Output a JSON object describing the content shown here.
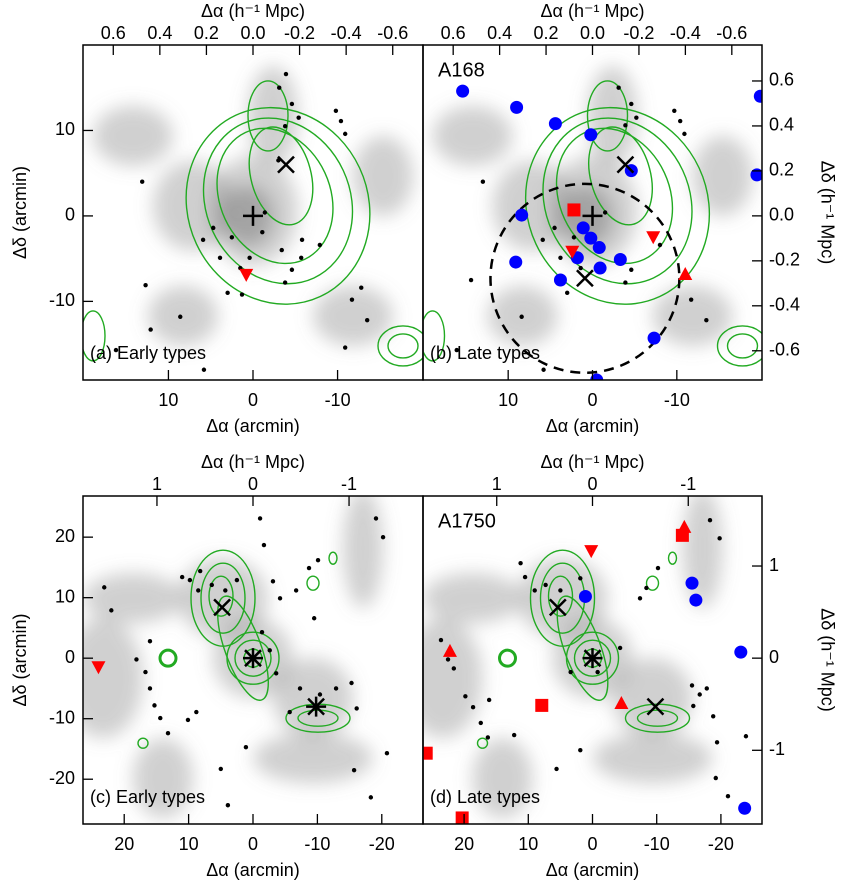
{
  "chart_data": [
    {
      "type": "scatter",
      "annotation": "(a) Early types",
      "xlabel": "Δα (arcmin)",
      "ylabel": "Δδ (arcmin)",
      "x2label": "Δα (h⁻¹ Mpc)",
      "xlim": [
        20.1,
        -20.1
      ],
      "ylim": [
        -19.2,
        20
      ],
      "xticks": [
        10,
        0,
        -10
      ],
      "yticks": [
        10,
        0,
        -10
      ],
      "x2lim": [
        0.73,
        -0.73
      ],
      "x2ticks": [
        0.6,
        0.4,
        0.2,
        {
          "value": 0,
          "label": "0.0"
        },
        -0.2,
        -0.4,
        -0.6
      ],
      "series": [
        {
          "marker": "dot",
          "color": "#000000",
          "x": [
            13.1,
            12.7,
            16.2,
            8.6,
            5.9,
            4.7,
            3.9,
            2.5,
            1.5,
            0.4,
            -1.4,
            -1.1,
            -3.4,
            -5.8,
            -5.7,
            -3.8,
            -5.4,
            -9.8,
            -10.4,
            -10.9,
            -4.6,
            -3.1,
            -3.9,
            -3.8,
            -11.7,
            -12.8,
            -13.5,
            -10.9,
            3.0,
            1.3,
            -4.6,
            -7.9,
            -3.0,
            5.8,
            12.1
          ],
          "y": [
            4.0,
            -8.1,
            -15.7,
            -11.8,
            -2.8,
            -1.4,
            -4.9,
            -2.5,
            -6.1,
            -4.9,
            0.4,
            -1.9,
            -4.0,
            -2.8,
            -4.9,
            10.5,
            11.5,
            12.3,
            11.1,
            9.6,
            13.1,
            15.0,
            16.6,
            -7.8,
            -9.8,
            -8.4,
            -12.2,
            -15.4,
            -9.0,
            -9.2,
            -6.3,
            -3.4,
            6.5,
            -18.0,
            -13.3
          ]
        },
        {
          "marker": "tri_down",
          "color": "#ff0000",
          "x": [
            0.8
          ],
          "y": [
            -6.9
          ]
        },
        {
          "marker": "cross",
          "color": "#000000",
          "x": [
            -3.9
          ],
          "y": [
            6.0
          ]
        },
        {
          "marker": "plus",
          "color": "#000000",
          "x": [
            0
          ],
          "y": [
            0
          ]
        }
      ]
    },
    {
      "type": "scatter",
      "annotation": "(b) Late types",
      "label": "A168",
      "xlabel": "Δα (arcmin)",
      "x2label": "Δα (h⁻¹ Mpc)",
      "y2label": "Δδ (h⁻¹ Mpc)",
      "xlim": [
        20.1,
        -20.1
      ],
      "ylim": [
        -19.2,
        20
      ],
      "xticks": [
        10,
        0,
        -10
      ],
      "x2lim": [
        0.73,
        -0.73
      ],
      "x2ticks": [
        0.6,
        0.4,
        0.2,
        {
          "value": 0,
          "label": "0.0"
        },
        -0.2,
        -0.4,
        -0.6
      ],
      "y2lim": [
        -0.73,
        0.76
      ],
      "y2ticks": [
        0.6,
        0.4,
        0.2,
        {
          "value": 0,
          "label": "0.0"
        },
        -0.2,
        -0.4,
        -0.6
      ],
      "circle": {
        "x": 0.9,
        "y": -7.3,
        "r": 11.2
      },
      "series": [
        {
          "marker": "dot",
          "color": "#000000",
          "x": [
            13.0,
            14.4,
            16.1,
            8.4,
            5.9,
            4.5,
            3.8,
            2.2,
            1.4,
            -1.5,
            -3.9,
            -5.2,
            -9.7,
            -10.4,
            -10.9,
            -4.6,
            -3.1,
            -3.9,
            -11.7,
            -13.5,
            3.0,
            -4.6,
            -8.0,
            5.8
          ],
          "y": [
            4.0,
            -7.5,
            -15.7,
            -11.8,
            -2.8,
            -1.4,
            -4.9,
            -2.5,
            -6.1,
            0.4,
            10.6,
            11.5,
            12.3,
            11.1,
            9.6,
            13.1,
            15.0,
            -7.8,
            -9.8,
            -12.2,
            -9.0,
            -6.3,
            -3.4,
            -18.0
          ]
        },
        {
          "marker": "circle",
          "color": "#0000ff",
          "x": [
            15.4,
            9.0,
            4.4,
            0.2,
            -4.6,
            -19.9,
            -19.5,
            8.4,
            1.1,
            0.2,
            -0.8,
            1.8,
            -0.9,
            -3.3,
            9.1,
            3.8,
            -7.3,
            -0.5
          ],
          "y": [
            14.6,
            12.7,
            10.8,
            9.5,
            5.3,
            14.0,
            4.8,
            0.1,
            -1.4,
            -2.6,
            -3.7,
            -4.9,
            -6.1,
            -5.1,
            -5.4,
            -7.5,
            -14.3,
            -19.2
          ]
        },
        {
          "marker": "square",
          "color": "#ff0000",
          "x": [
            2.2
          ],
          "y": [
            0.7
          ]
        },
        {
          "marker": "tri_down",
          "color": "#ff0000",
          "x": [
            2.4,
            -7.2
          ],
          "y": [
            -4.2,
            -2.5
          ]
        },
        {
          "marker": "tri_up",
          "color": "#ff0000",
          "x": [
            -11.0
          ],
          "y": [
            -6.8
          ]
        },
        {
          "marker": "cross",
          "color": "#000000",
          "x": [
            -3.9,
            0.9
          ],
          "y": [
            6.0,
            -7.3
          ]
        },
        {
          "marker": "plus",
          "color": "#000000",
          "x": [
            0
          ],
          "y": [
            0
          ]
        }
      ]
    },
    {
      "type": "scatter",
      "annotation": "(c) Early types",
      "xlabel": "Δα (arcmin)",
      "ylabel": "Δδ (arcmin)",
      "x2label": "Δα (h⁻¹ Mpc)",
      "xlim": [
        26.4,
        -26.4
      ],
      "ylim": [
        -27.4,
        26.8
      ],
      "xticks": [
        20,
        10,
        0,
        -10,
        -20
      ],
      "yticks": [
        20,
        10,
        0,
        -10,
        -20
      ],
      "x2lim": [
        1.77,
        -1.77
      ],
      "x2ticks": [
        1,
        0,
        -1
      ],
      "series": [
        {
          "marker": "dot",
          "color": "#000000",
          "x": [
            23.1,
            22.0,
            18.1,
            16.7,
            16.0,
            15.3,
            14.4,
            13.2,
            10.1,
            8.8,
            11.0,
            9.8,
            8.5,
            8.2,
            6.4,
            4.3,
            2.5,
            -1.1,
            -1.7,
            -3.1,
            -4.2,
            -6.7,
            -8.7,
            -10.1,
            -9.5,
            -1.4,
            -2.6,
            -3.6,
            -7.3,
            -12.9,
            -15.3,
            -16.1,
            -10.4,
            -5.7,
            -15.7,
            -18.3,
            -20.8,
            -20.2,
            -19.1,
            5.0,
            1.1,
            3.9,
            16.0
          ],
          "y": [
            11.7,
            7.9,
            -0.2,
            -2.3,
            -5.0,
            -7.8,
            -9.9,
            -12.4,
            -10.2,
            -8.9,
            13.4,
            12.9,
            11.2,
            14.4,
            12.1,
            11.2,
            12.9,
            23.1,
            18.7,
            12.7,
            9.9,
            11.2,
            14.9,
            16.2,
            6.6,
            4.3,
            1.3,
            -2.5,
            -5.0,
            -5.0,
            -4.1,
            -8.3,
            -6.0,
            -8.9,
            -18.5,
            -23.0,
            -15.7,
            20.0,
            23.1,
            -18.3,
            -14.7,
            -24.3,
            2.8
          ]
        },
        {
          "marker": "tri_down",
          "color": "#ff0000",
          "x": [
            24.0
          ],
          "y": [
            -1.5
          ]
        },
        {
          "marker": "cross",
          "color": "#000000",
          "x": [
            4.8,
            0,
            -9.8
          ],
          "y": [
            8.4,
            0,
            -8.0
          ]
        },
        {
          "marker": "plus",
          "color": "#000000",
          "x": [
            0,
            -9.8
          ],
          "y": [
            0,
            -8.0
          ]
        }
      ]
    },
    {
      "type": "scatter",
      "annotation": "(d) Late types",
      "label": "A1750",
      "xlabel": "Δα (arcmin)",
      "x2label": "Δα (h⁻¹ Mpc)",
      "y2label": "Δδ (h⁻¹ Mpc)",
      "xlim": [
        26.4,
        -26.4
      ],
      "ylim": [
        -27.4,
        26.8
      ],
      "xticks": [
        20,
        10,
        0,
        -10,
        -20
      ],
      "x2lim": [
        1.77,
        -1.77
      ],
      "x2ticks": [
        1,
        0,
        -1
      ],
      "y2lim": [
        -1.8,
        1.76
      ],
      "y2ticks": [
        1,
        0,
        -1
      ],
      "series": [
        {
          "marker": "dot",
          "color": "#000000",
          "x": [
            23.6,
            22.5,
            21.6,
            18.6,
            19.8,
            17.4,
            16.3,
            12.2,
            11.2,
            10.5,
            9.0,
            7.3,
            5.0,
            1.9,
            -7.4,
            -8.4,
            -10.2,
            -16.7,
            -15.5,
            -17.8,
            -18.8,
            -19.4,
            -15.7,
            -0.8,
            -4.3,
            3.4,
            -19.2,
            -21.1,
            -23.9,
            -19.8,
            -18.3,
            5.6,
            1.9,
            16.1
          ],
          "y": [
            3.0,
            -0.2,
            -1.7,
            -8.1,
            -6.3,
            -10.7,
            -13.1,
            -12.7,
            15.7,
            13.4,
            11.2,
            12.1,
            11.2,
            13.2,
            9.9,
            11.6,
            14.9,
            -6.0,
            -4.5,
            -5.0,
            -9.6,
            -13.9,
            -7.9,
            -2.3,
            1.7,
            -2.3,
            -19.8,
            -22.8,
            -12.9,
            19.8,
            22.8,
            -18.3,
            -15.2,
            -6.9
          ]
        },
        {
          "marker": "circle",
          "color": "#0000ff",
          "x": [
            -15.5,
            -16.1,
            -23.1,
            -23.7,
            1.1
          ],
          "y": [
            12.4,
            9.6,
            1.0,
            -24.8,
            10.2
          ]
        },
        {
          "marker": "square",
          "color": "#ff0000",
          "x": [
            -14.0,
            7.9,
            20.3,
            25.9
          ],
          "y": [
            20.3,
            -7.8,
            -26.4,
            -15.7
          ]
        },
        {
          "marker": "tri_up",
          "color": "#ff0000",
          "x": [
            -14.3,
            22.2,
            -4.5
          ],
          "y": [
            21.7,
            1.2,
            -7.4
          ]
        },
        {
          "marker": "tri_down",
          "color": "#ff0000",
          "x": [
            0.2
          ],
          "y": [
            17.7
          ]
        },
        {
          "marker": "cross",
          "color": "#000000",
          "x": [
            5.4,
            0,
            -9.8
          ],
          "y": [
            8.4,
            0,
            -8.0
          ]
        },
        {
          "marker": "plus",
          "color": "#000000",
          "x": [
            0
          ],
          "y": [
            0
          ]
        }
      ]
    }
  ]
}
